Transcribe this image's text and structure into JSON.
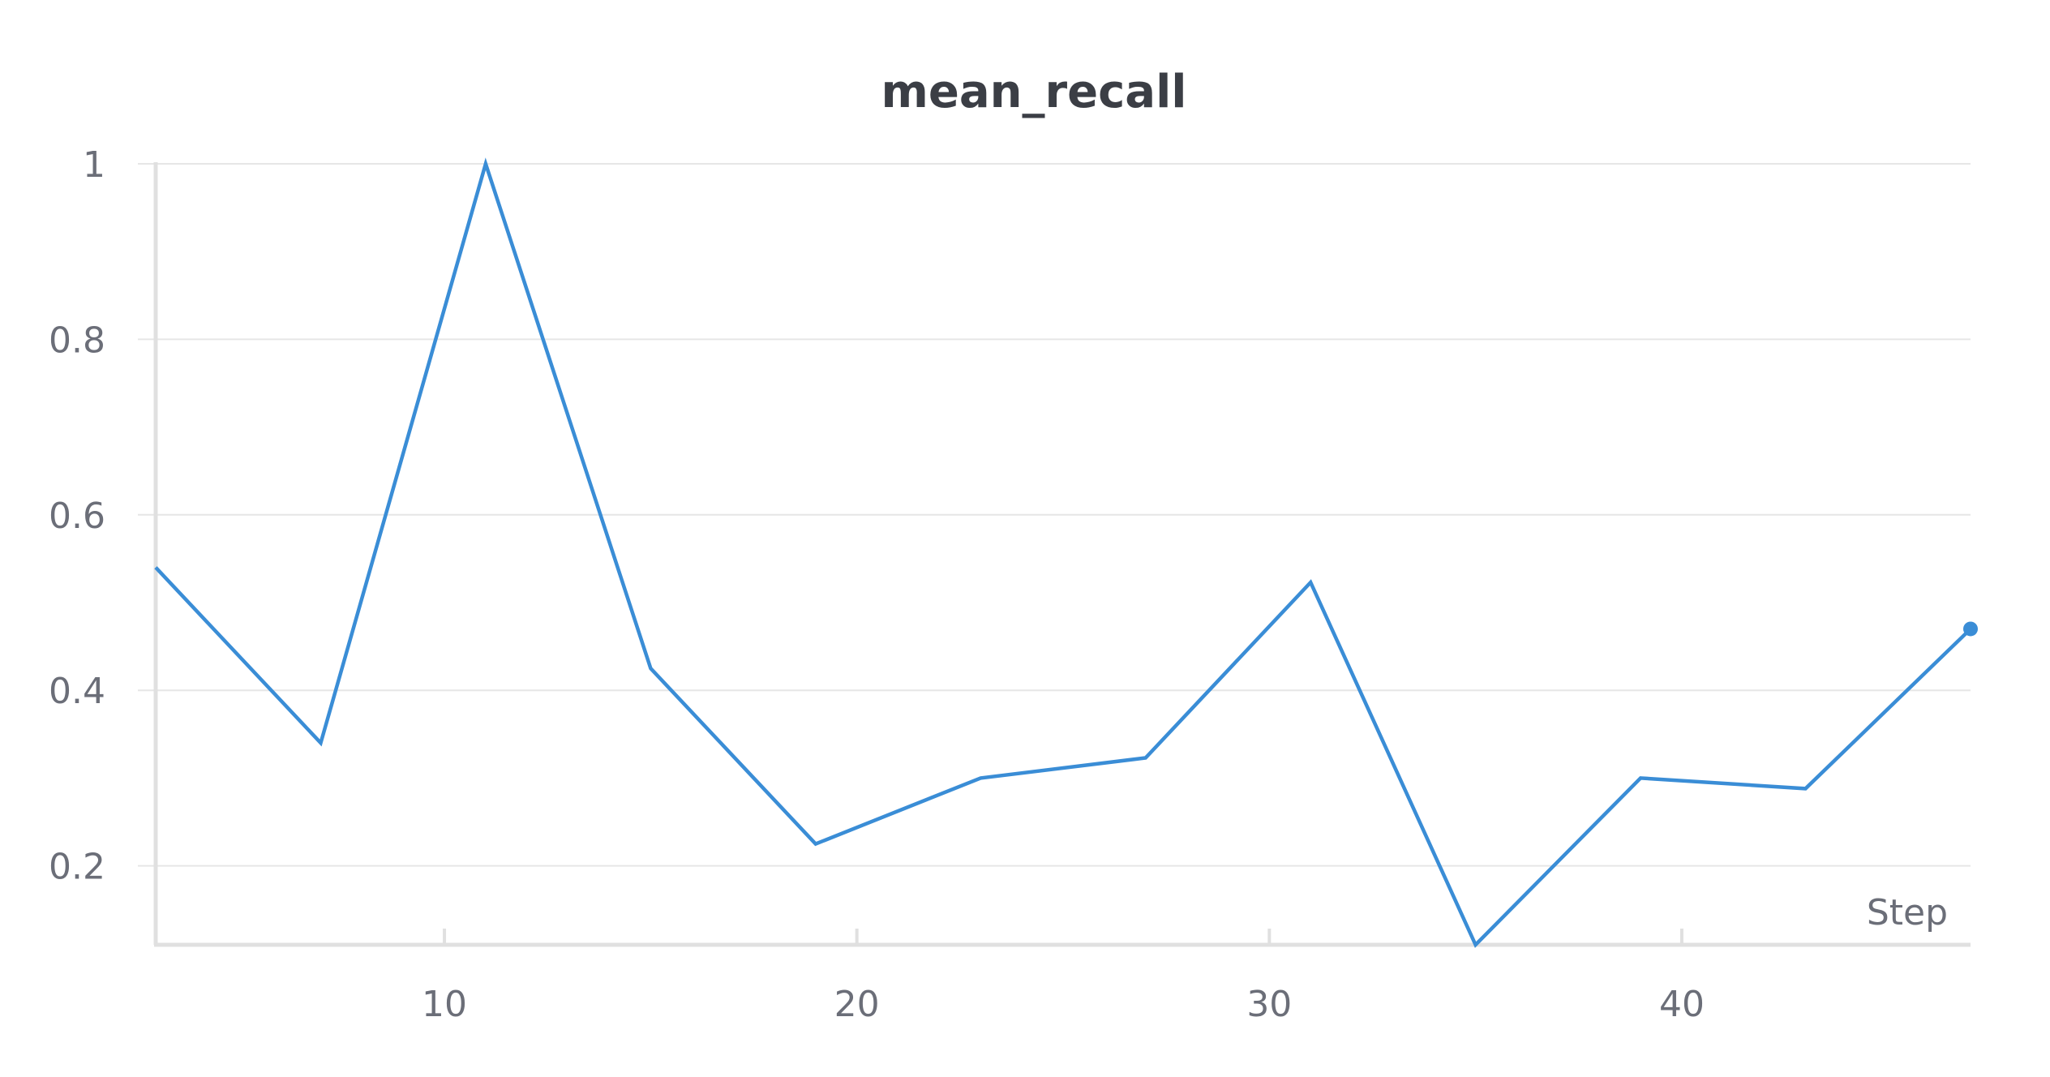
{
  "chart_data": {
    "type": "line",
    "title": "mean_recall",
    "xlabel": "Step",
    "ylabel": "",
    "xlim": [
      3,
      47
    ],
    "ylim": [
      0.11,
      1.0
    ],
    "x_ticks": [
      10,
      20,
      30,
      40
    ],
    "y_ticks": [
      0.2,
      0.4,
      0.6,
      0.8,
      1
    ],
    "y_tick_labels": [
      "0.2",
      "0.4",
      "0.6",
      "0.8",
      "1"
    ],
    "x_tick_labels": [
      "10",
      "20",
      "30",
      "40"
    ],
    "grid": "horizontal",
    "legend": "none",
    "series": [
      {
        "color": "#3a8dd6",
        "x": [
          3,
          7,
          11,
          15,
          19,
          23,
          27,
          31,
          35,
          39,
          43,
          47
        ],
        "y": [
          0.54,
          0.34,
          1.0,
          0.425,
          0.225,
          0.3,
          0.323,
          0.523,
          0.11,
          0.3,
          0.288,
          0.47
        ],
        "end_marker": true
      }
    ]
  }
}
